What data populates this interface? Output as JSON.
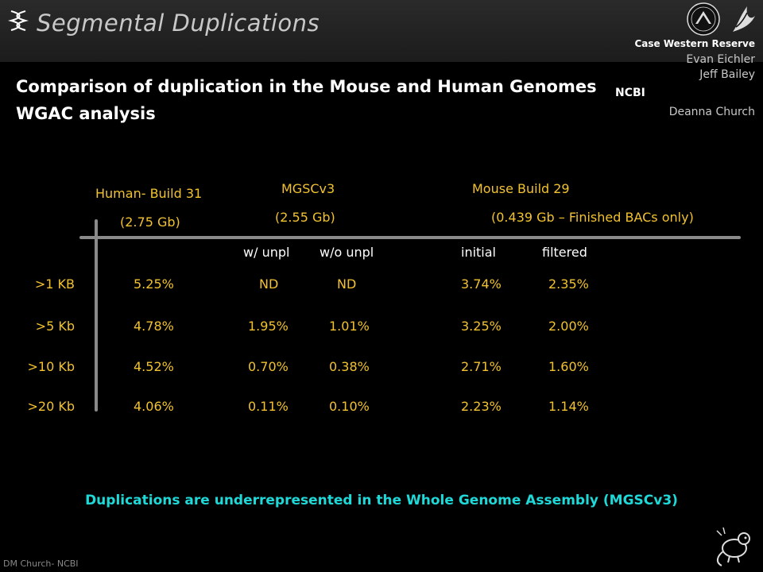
{
  "header": {
    "title": "Segmental Duplications",
    "subtitle_line1": "Comparison of duplication in the Mouse and Human Genomes",
    "subtitle_line2": "WGAC analysis"
  },
  "affiliations": {
    "institution": "Case Western Reserve",
    "person1": "Evan Eichler",
    "person2": "Jeff Bailey",
    "ncbi": "NCBI",
    "person3": "Deanna Church"
  },
  "columns": {
    "human": {
      "name": "Human- Build 31",
      "size": "(2.75 Gb)"
    },
    "mgsc": {
      "name": "MGSCv3",
      "size": "(2.55 Gb)",
      "sub1": "w/ unpl",
      "sub2": "w/o unpl"
    },
    "mouse29": {
      "name": "Mouse Build 29",
      "size": "(0.439 Gb – Finished BACs only)",
      "sub1": "initial",
      "sub2": "filtered"
    }
  },
  "rows": [
    {
      "label": ">1 KB",
      "human": "5.25%",
      "w_unpl": "ND",
      "wo_unpl": "ND",
      "initial": "3.74%",
      "filtered": "2.35%"
    },
    {
      "label": ">5 Kb",
      "human": "4.78%",
      "w_unpl": "1.95%",
      "wo_unpl": "1.01%",
      "initial": "3.25%",
      "filtered": "2.00%"
    },
    {
      "label": ">10 Kb",
      "human": "4.52%",
      "w_unpl": "0.70%",
      "wo_unpl": "0.38%",
      "initial": "2.71%",
      "filtered": "1.60%"
    },
    {
      "label": ">20 Kb",
      "human": "4.06%",
      "w_unpl": "0.11%",
      "wo_unpl": "0.10%",
      "initial": "2.23%",
      "filtered": "1.14%"
    }
  ],
  "conclusion": "Duplications are underrepresented in the Whole Genome Assembly (MGSCv3)",
  "footer": "DM Church- NCBI",
  "icons": {
    "title_icon": "dna-helix-icon",
    "logo1": "nih-logo",
    "logo2": "hhs-logo",
    "mascot": "mouse-icon"
  },
  "colors": {
    "background": "#000000",
    "header_band": "#222222",
    "column_heading": "#f2c230",
    "conclusion": "#1fd8d8",
    "divider": "#8a8a8a"
  }
}
